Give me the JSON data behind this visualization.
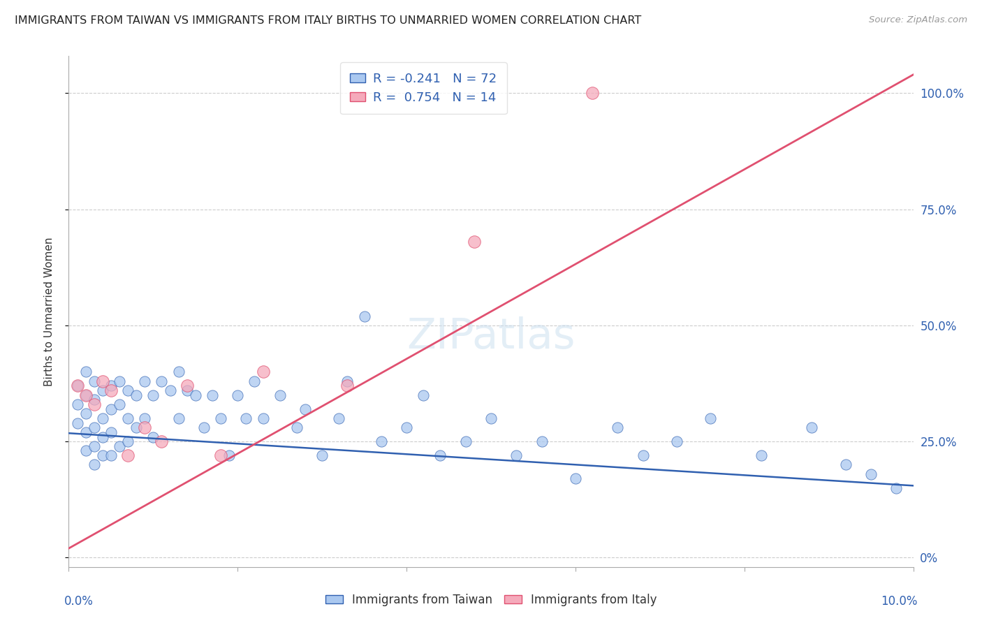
{
  "title": "IMMIGRANTS FROM TAIWAN VS IMMIGRANTS FROM ITALY BIRTHS TO UNMARRIED WOMEN CORRELATION CHART",
  "source": "Source: ZipAtlas.com",
  "ylabel": "Births to Unmarried Women",
  "xlim": [
    0.0,
    0.1
  ],
  "ylim": [
    -0.02,
    1.08
  ],
  "ytick_values": [
    0.0,
    0.25,
    0.5,
    0.75,
    1.0
  ],
  "ytick_labels_right": [
    "0%",
    "25.0%",
    "50.0%",
    "75.0%",
    "100.0%"
  ],
  "legend_entry1": "R = -0.241   N = 72",
  "legend_entry2": "R =  0.754   N = 14",
  "taiwan_color": "#aac8f0",
  "italy_color": "#f5aabb",
  "taiwan_line_color": "#3060b0",
  "italy_line_color": "#e05070",
  "watermark": "ZIPatlas",
  "background_color": "#ffffff",
  "taiwan_line_x": [
    0.0,
    0.1
  ],
  "taiwan_line_y": [
    0.268,
    0.155
  ],
  "italy_line_x": [
    0.0,
    0.1
  ],
  "italy_line_y": [
    0.02,
    1.04
  ],
  "taiwan_x": [
    0.001,
    0.001,
    0.001,
    0.002,
    0.002,
    0.002,
    0.002,
    0.002,
    0.003,
    0.003,
    0.003,
    0.003,
    0.003,
    0.004,
    0.004,
    0.004,
    0.004,
    0.005,
    0.005,
    0.005,
    0.005,
    0.006,
    0.006,
    0.006,
    0.007,
    0.007,
    0.007,
    0.008,
    0.008,
    0.009,
    0.009,
    0.01,
    0.01,
    0.011,
    0.012,
    0.013,
    0.013,
    0.014,
    0.015,
    0.016,
    0.017,
    0.018,
    0.019,
    0.02,
    0.021,
    0.022,
    0.023,
    0.025,
    0.027,
    0.028,
    0.03,
    0.032,
    0.033,
    0.035,
    0.037,
    0.04,
    0.042,
    0.044,
    0.047,
    0.05,
    0.053,
    0.056,
    0.06,
    0.065,
    0.068,
    0.072,
    0.076,
    0.082,
    0.088,
    0.092,
    0.095,
    0.098
  ],
  "taiwan_y": [
    0.37,
    0.33,
    0.29,
    0.4,
    0.35,
    0.31,
    0.27,
    0.23,
    0.38,
    0.34,
    0.28,
    0.24,
    0.2,
    0.36,
    0.3,
    0.26,
    0.22,
    0.37,
    0.32,
    0.27,
    0.22,
    0.38,
    0.33,
    0.24,
    0.36,
    0.3,
    0.25,
    0.35,
    0.28,
    0.38,
    0.3,
    0.35,
    0.26,
    0.38,
    0.36,
    0.4,
    0.3,
    0.36,
    0.35,
    0.28,
    0.35,
    0.3,
    0.22,
    0.35,
    0.3,
    0.38,
    0.3,
    0.35,
    0.28,
    0.32,
    0.22,
    0.3,
    0.38,
    0.52,
    0.25,
    0.28,
    0.35,
    0.22,
    0.25,
    0.3,
    0.22,
    0.25,
    0.17,
    0.28,
    0.22,
    0.25,
    0.3,
    0.22,
    0.28,
    0.2,
    0.18,
    0.15
  ],
  "italy_x": [
    0.001,
    0.002,
    0.003,
    0.004,
    0.005,
    0.007,
    0.009,
    0.011,
    0.014,
    0.018,
    0.023,
    0.033,
    0.048,
    0.062
  ],
  "italy_y": [
    0.37,
    0.35,
    0.33,
    0.38,
    0.36,
    0.22,
    0.28,
    0.25,
    0.37,
    0.22,
    0.4,
    0.37,
    0.68,
    1.0
  ]
}
